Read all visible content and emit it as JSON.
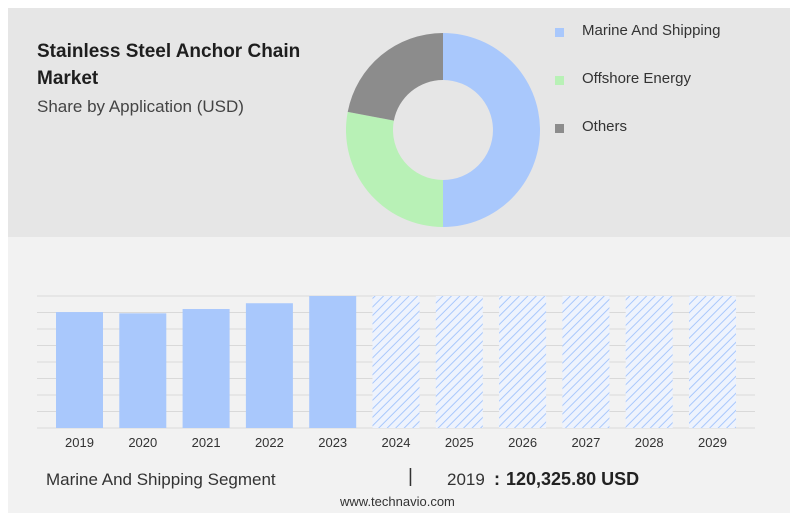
{
  "header": {
    "title": "Stainless Steel Anchor Chain Market",
    "subtitle": "Share by Application (USD)"
  },
  "chart_data": [
    {
      "type": "pie",
      "variant": "donut",
      "legend_position": "right",
      "slices": [
        {
          "name": "Marine And Shipping",
          "value": 50,
          "color": "#a9c8fc"
        },
        {
          "name": "Offshore Energy",
          "value": 28,
          "color": "#b8f1b6"
        },
        {
          "name": "Others",
          "value": 22,
          "color": "#8c8c8c"
        }
      ]
    },
    {
      "type": "bar",
      "categories": [
        "2019",
        "2020",
        "2021",
        "2022",
        "2023",
        "2024",
        "2025",
        "2026",
        "2027",
        "2028",
        "2029"
      ],
      "values": [
        120325.8,
        119000,
        123500,
        129500,
        137000,
        137000,
        137000,
        137000,
        137000,
        137000,
        137000
      ],
      "forecast_from_index": 5,
      "bar_color": "#a9c8fc",
      "forecast_pattern": "diagonal-hatch",
      "ylim": [
        0,
        137000
      ],
      "grid": true
    }
  ],
  "footer": {
    "segment_label": "Marine And Shipping Segment",
    "separator": "|",
    "year": "2019",
    "colon": ":",
    "value": "120,325.80 USD"
  },
  "source": "www.technavio.com"
}
